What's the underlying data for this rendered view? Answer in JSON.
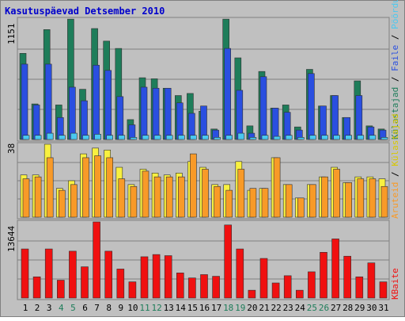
{
  "title": "Kasutuspäevad Detsember 2010",
  "colors": {
    "background": "#c0c0c0",
    "border": "#808080",
    "title": "#0000cc",
    "visits": "#1e7d5a",
    "pages": "#2a4fe0",
    "files": "#4ac8f0",
    "hits": "#f8f040",
    "traffic_orange": "#f89a28",
    "kbytes": "#f01010",
    "weekend_label": "#1e7d5a",
    "weekday_label": "#000000"
  },
  "chart_data": [
    {
      "type": "bar",
      "panel": "top",
      "ymax_label": "1151",
      "ylim": [
        0,
        1151
      ],
      "right_label_parts": [
        {
          "text": "Külastajad",
          "color": "#1e7d5a"
        },
        {
          "text": " / ",
          "color": "#000000"
        },
        {
          "text": "Faile",
          "color": "#2a4fe0"
        },
        {
          "text": " / ",
          "color": "#000000"
        },
        {
          "text": "Pöördumisi",
          "color": "#4ac8f0"
        }
      ],
      "series": [
        {
          "name": "Külastajad",
          "values": [
            823,
            340,
            1050,
            330,
            1150,
            480,
            1060,
            940,
            870,
            190,
            590,
            580,
            490,
            420,
            440,
            270,
            100,
            1150,
            780,
            130,
            650,
            300,
            330,
            120,
            670,
            320,
            420,
            210,
            560,
            130,
            100
          ]
        },
        {
          "name": "Faile",
          "values": [
            720,
            330,
            720,
            210,
            500,
            370,
            710,
            660,
            410,
            140,
            500,
            490,
            490,
            350,
            250,
            320,
            90,
            870,
            470,
            60,
            600,
            300,
            260,
            90,
            630,
            320,
            420,
            210,
            420,
            120,
            90
          ]
        },
        {
          "name": "Pöördumisi",
          "values": [
            40,
            40,
            60,
            40,
            60,
            40,
            50,
            40,
            40,
            20,
            40,
            40,
            40,
            40,
            40,
            40,
            20,
            40,
            60,
            20,
            40,
            30,
            40,
            20,
            40,
            40,
            40,
            40,
            40,
            40,
            20
          ]
        }
      ]
    },
    {
      "type": "bar",
      "panel": "middle",
      "ymax_label": "38",
      "ylim": [
        0,
        38
      ],
      "right_label_parts": [
        {
          "text": "Aruteid",
          "color": "#f89a28"
        },
        {
          "text": " / ",
          "color": "#000000"
        },
        {
          "text": "Külastajad",
          "color": "#d8c800"
        }
      ],
      "series": [
        {
          "name": "Külastajad",
          "values": [
            22,
            22,
            38,
            15,
            19,
            33,
            36,
            35,
            26,
            17,
            25,
            23,
            22,
            23,
            29,
            26,
            17,
            17,
            29,
            14,
            15,
            31,
            17,
            10,
            17,
            21,
            26,
            18,
            21,
            21,
            20
          ]
        },
        {
          "name": "Aruteid",
          "values": [
            20,
            21,
            31,
            14,
            17,
            31,
            32,
            31,
            20,
            16,
            24,
            21,
            21,
            21,
            33,
            25,
            16,
            14,
            25,
            15,
            15,
            31,
            17,
            10,
            17,
            21,
            25,
            18,
            20,
            20,
            16
          ]
        }
      ]
    },
    {
      "type": "bar",
      "panel": "bottom",
      "ymax_label": "13644",
      "ylim": [
        0,
        13644
      ],
      "right_label_parts": [
        {
          "text": "KBaite",
          "color": "#f01010"
        }
      ],
      "categories": [
        "1",
        "2",
        "3",
        "4",
        "5",
        "6",
        "7",
        "8",
        "9",
        "10",
        "11",
        "12",
        "13",
        "14",
        "15",
        "16",
        "17",
        "18",
        "19",
        "20",
        "21",
        "22",
        "23",
        "24",
        "25",
        "26",
        "27",
        "28",
        "29",
        "30",
        "31"
      ],
      "weekend_days": [
        4,
        5,
        11,
        12,
        18,
        19,
        25,
        26
      ],
      "series": [
        {
          "name": "KBaite",
          "values": [
            8800,
            3800,
            8800,
            3200,
            8400,
            5600,
            13700,
            8400,
            5200,
            2900,
            7400,
            7800,
            7600,
            4500,
            3600,
            4200,
            3900,
            13100,
            8800,
            1400,
            7100,
            2700,
            4000,
            1400,
            4700,
            8200,
            10600,
            7500,
            3800,
            6300,
            2900
          ]
        }
      ]
    }
  ]
}
